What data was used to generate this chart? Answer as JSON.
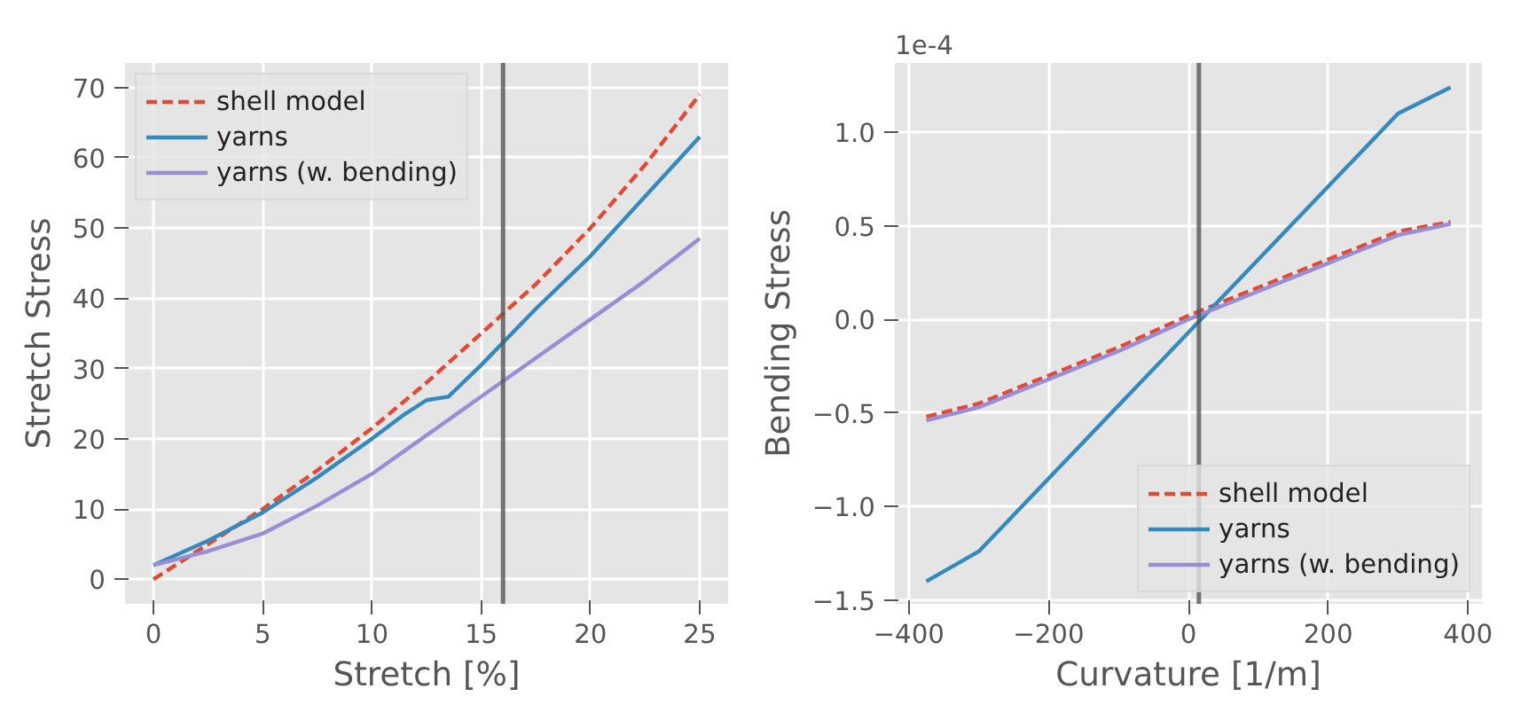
{
  "chart_data": [
    {
      "type": "line",
      "xlabel": "Stretch [%]",
      "ylabel": "Stretch Stress",
      "xlim": [
        -1.3,
        26.3
      ],
      "ylim": [
        -3.5,
        73.5
      ],
      "xticks": [
        0,
        5,
        10,
        15,
        20,
        25
      ],
      "yticks": [
        0,
        10,
        20,
        30,
        40,
        50,
        60,
        70
      ],
      "grid": true,
      "legend": "top left",
      "ref_lines": [
        {
          "axis": "x",
          "value": 16,
          "color": "#555555"
        }
      ],
      "series": [
        {
          "name": "shell model",
          "color": "#e24a33",
          "line_style": "dashed",
          "x": [
            0,
            2.5,
            5,
            7.5,
            10,
            12.5,
            15,
            17.5,
            20,
            22.5,
            25
          ],
          "values": [
            0,
            5,
            10,
            15.5,
            21.5,
            28,
            35,
            42,
            50,
            59,
            69
          ]
        },
        {
          "name": "yarns",
          "color": "#348abd",
          "line_style": "solid",
          "x": [
            0,
            2.5,
            5,
            7.5,
            10,
            11.5,
            12.5,
            13.5,
            15,
            17.5,
            20,
            22.5,
            25
          ],
          "values": [
            2,
            5.5,
            9.5,
            14.5,
            20,
            23.5,
            25.5,
            26,
            30.5,
            38.5,
            46,
            54.5,
            63
          ]
        },
        {
          "name": "yarns (w. bending)",
          "color": "#988ed5",
          "line_style": "solid",
          "x": [
            0,
            2.5,
            5,
            7.5,
            10,
            12.5,
            15,
            17.5,
            20,
            22.5,
            25
          ],
          "values": [
            2,
            4,
            6.5,
            10.5,
            15,
            20.5,
            26,
            31.5,
            37,
            42.5,
            48.5
          ]
        }
      ]
    },
    {
      "type": "line",
      "xlabel": "Curvature [1/m]",
      "ylabel": "Bending Stress",
      "annotations": [
        "1e-4"
      ],
      "xlim": [
        -420,
        420
      ],
      "ylim": [
        -1.52,
        1.37
      ],
      "xticks": [
        {
          "value": -400,
          "label": "−400"
        },
        {
          "value": -200,
          "label": "−200"
        },
        0,
        200,
        400
      ],
      "yticks": [
        {
          "value": -1.5,
          "label": "−1.5"
        },
        {
          "value": -1.0,
          "label": "−1.0"
        },
        {
          "value": -0.5,
          "label": "−0.5"
        },
        {
          "value": 0.0,
          "label": "0.0"
        },
        {
          "value": 0.5,
          "label": "0.5"
        },
        {
          "value": 1.0,
          "label": "1.0"
        }
      ],
      "grid": true,
      "legend": "bottom right",
      "ref_lines": [
        {
          "axis": "x",
          "value": 15,
          "color": "#555555"
        }
      ],
      "series": [
        {
          "name": "shell model",
          "color": "#e24a33",
          "line_style": "dashed",
          "x": [
            -375,
            -300,
            -200,
            -100,
            0,
            100,
            200,
            300,
            375
          ],
          "values": [
            -0.52,
            -0.45,
            -0.3,
            -0.15,
            0.02,
            0.17,
            0.32,
            0.47,
            0.52
          ]
        },
        {
          "name": "yarns",
          "color": "#348abd",
          "line_style": "solid",
          "x": [
            -375,
            -300,
            300,
            375
          ],
          "values": [
            -1.4,
            -1.24,
            1.1,
            1.24
          ]
        },
        {
          "name": "yarns (w. bending)",
          "color": "#988ed5",
          "line_style": "solid",
          "x": [
            -375,
            -300,
            -200,
            -100,
            0,
            100,
            200,
            300,
            375
          ],
          "values": [
            -0.54,
            -0.47,
            -0.32,
            -0.17,
            0.0,
            0.15,
            0.3,
            0.45,
            0.51
          ]
        }
      ]
    }
  ]
}
